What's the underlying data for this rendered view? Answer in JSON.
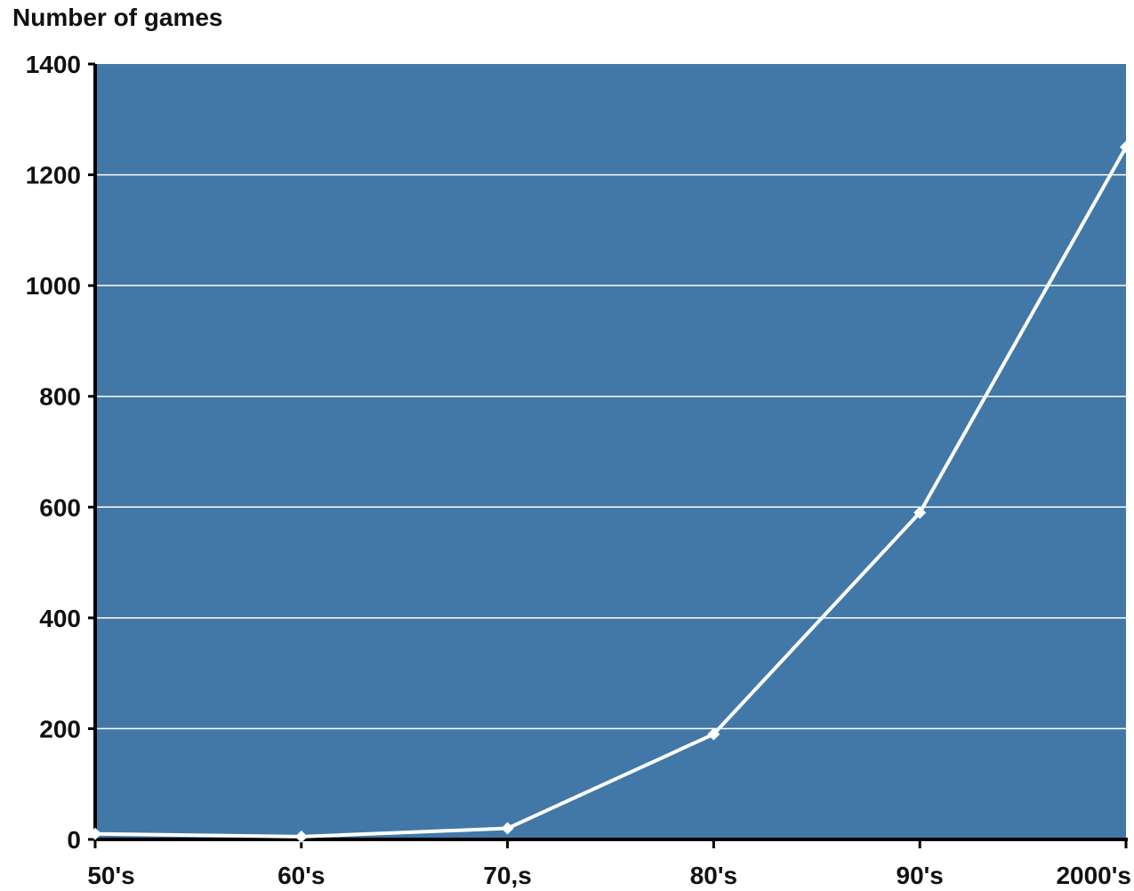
{
  "chart_data": {
    "type": "line",
    "ylabel": "Number of games",
    "xlabel": "",
    "title": "",
    "categories": [
      "50's",
      "60's",
      "70,s",
      "80's",
      "90's",
      "2000's"
    ],
    "series": [
      {
        "values": [
          10,
          5,
          20,
          190,
          590,
          1250
        ]
      }
    ],
    "ylim": [
      0,
      1400
    ],
    "yticks": [
      "0",
      "200",
      "400",
      "600",
      "800",
      "1000",
      "1200",
      "1400"
    ],
    "grid": true,
    "plot_background": "#4178a7",
    "line_color": "#ffffff",
    "grid_color": "#ffffff",
    "axis_color": "#000000",
    "marker": "diamond"
  }
}
